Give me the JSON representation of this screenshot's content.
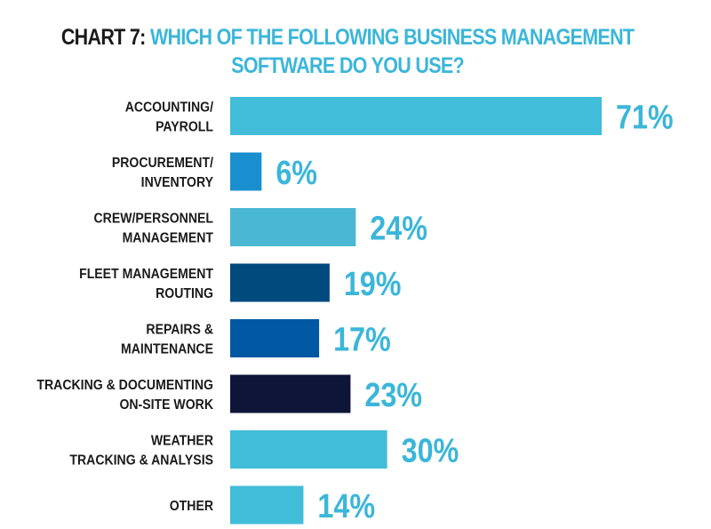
{
  "title": {
    "prefix": "CHART 7:",
    "line1": "WHICH OF THE FOLLOWING BUSINESS MANAGEMENT",
    "line2": "SOFTWARE DO YOU USE?"
  },
  "chart_data": {
    "type": "bar",
    "orientation": "horizontal",
    "title": "CHART 7: WHICH OF THE FOLLOWING BUSINESS MANAGEMENT SOFTWARE DO YOU USE?",
    "categories": [
      [
        "ACCOUNTING/",
        "PAYROLL"
      ],
      [
        "PROCUREMENT/",
        "INVENTORY"
      ],
      [
        "CREW/PERSONNEL",
        "MANAGEMENT"
      ],
      [
        "FLEET MANAGEMENT",
        "ROUTING"
      ],
      [
        "REPAIRS &",
        "MAINTENANCE"
      ],
      [
        "TRACKING & DOCUMENTING",
        "ON-SITE WORK"
      ],
      [
        "WEATHER",
        "TRACKING & ANALYSIS"
      ],
      [
        "OTHER"
      ]
    ],
    "values": [
      71,
      6,
      24,
      19,
      17,
      23,
      30,
      14
    ],
    "value_labels": [
      "71%",
      "6%",
      "24%",
      "19%",
      "17%",
      "23%",
      "30%",
      "14%"
    ],
    "colors": [
      "#41bcd9",
      "#1a8fd0",
      "#4ab7d3",
      "#004a7e",
      "#0058a3",
      "#0e1538",
      "#41bcd9",
      "#41bcd9"
    ],
    "label_color": "#3bb6d9",
    "xlim": [
      0,
      71
    ],
    "grid": false,
    "legend": "none"
  }
}
